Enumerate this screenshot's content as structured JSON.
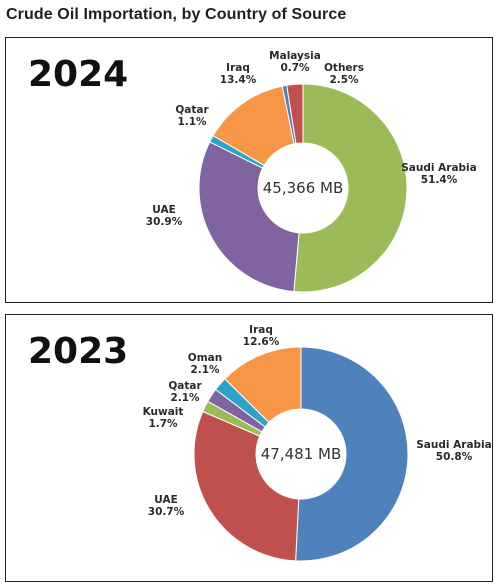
{
  "title": "Crude Oil Importation, by Country of Source",
  "chart_data": [
    {
      "type": "pie",
      "year": "2024",
      "total_label": "45,366 MB",
      "series": [
        {
          "name": "Saudi Arabia",
          "value": 51.4,
          "label": "51.4%",
          "color": "#9bbb59"
        },
        {
          "name": "UAE",
          "value": 30.9,
          "label": "30.9%",
          "color": "#8064a2"
        },
        {
          "name": "Qatar",
          "value": 1.1,
          "label": "1.1%",
          "color": "#2ea3c8"
        },
        {
          "name": "Iraq",
          "value": 13.4,
          "label": "13.4%",
          "color": "#f79646"
        },
        {
          "name": "Malaysia",
          "value": 0.7,
          "label": "0.7%",
          "color": "#4f81bd"
        },
        {
          "name": "Others",
          "value": 2.5,
          "label": "2.5%",
          "color": "#c0504d"
        }
      ]
    },
    {
      "type": "pie",
      "year": "2023",
      "total_label": "47,481 MB",
      "series": [
        {
          "name": "Saudi Arabia",
          "value": 50.8,
          "label": "50.8%",
          "color": "#4f81bd"
        },
        {
          "name": "UAE",
          "value": 30.7,
          "label": "30.7%",
          "color": "#c0504d"
        },
        {
          "name": "Kuwait",
          "value": 1.7,
          "label": "1.7%",
          "color": "#9bbb59"
        },
        {
          "name": "Qatar",
          "value": 2.1,
          "label": "2.1%",
          "color": "#8064a2"
        },
        {
          "name": "Oman",
          "value": 2.1,
          "label": "2.1%",
          "color": "#2ea3c8"
        },
        {
          "name": "Iraq",
          "value": 12.6,
          "label": "12.6%",
          "color": "#f79646"
        }
      ]
    }
  ]
}
